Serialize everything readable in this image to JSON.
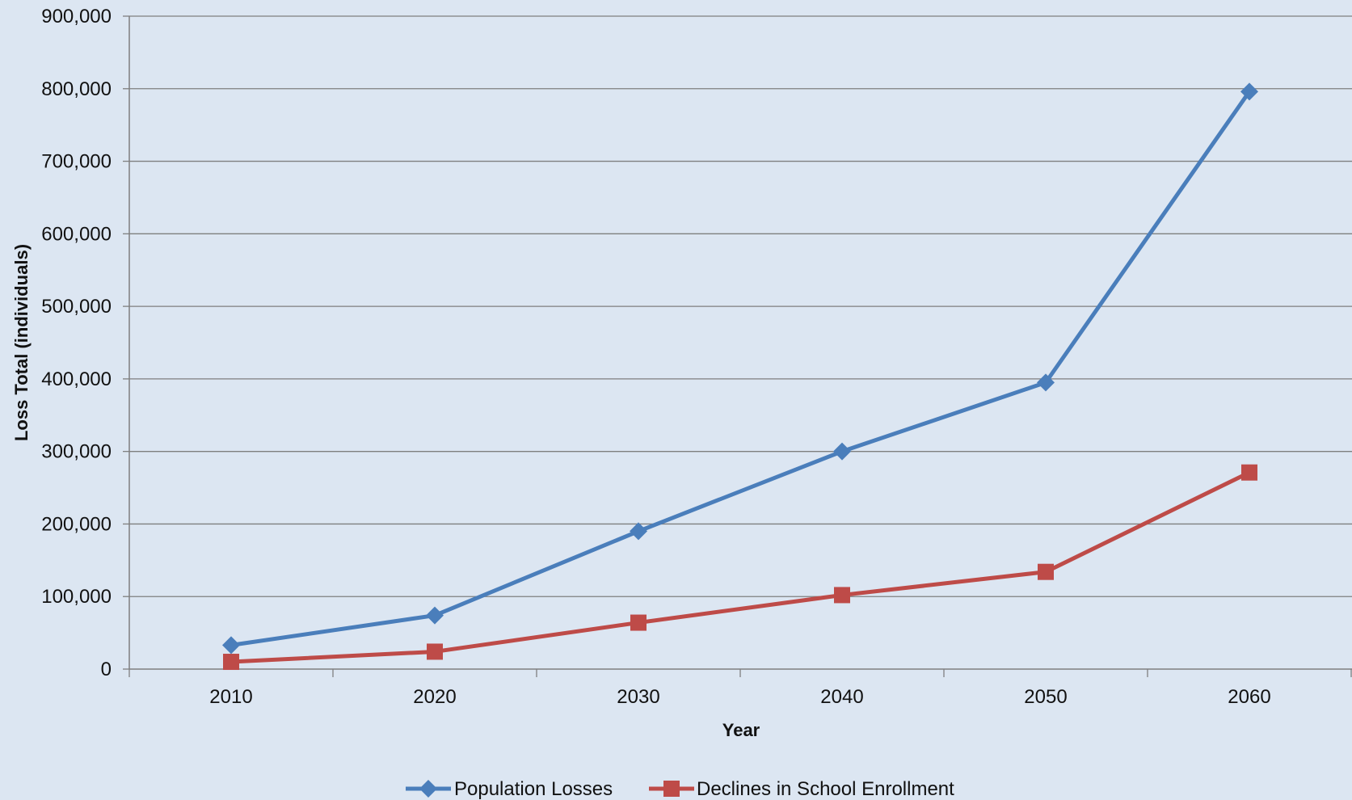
{
  "chart_data": {
    "type": "line",
    "title": "",
    "xlabel": "Year",
    "ylabel": "Loss Total (individuals)",
    "categories": [
      "2010",
      "2020",
      "2030",
      "2040",
      "2050",
      "2060"
    ],
    "ylim": [
      0,
      900000
    ],
    "yticks": [
      0,
      100000,
      200000,
      300000,
      400000,
      500000,
      600000,
      700000,
      800000,
      900000
    ],
    "ytick_labels": [
      "0",
      "100,000",
      "200,000",
      "300,000",
      "400,000",
      "500,000",
      "600,000",
      "700,000",
      "800,000",
      "900,000"
    ],
    "grid": true,
    "legend_position": "bottom",
    "series": [
      {
        "name": "Population Losses",
        "color": "#4a7ebb",
        "marker": "diamond",
        "values": [
          33000,
          74000,
          190000,
          300000,
          395000,
          796000
        ]
      },
      {
        "name": "Declines in School Enrollment",
        "color": "#be4b48",
        "marker": "square",
        "values": [
          10000,
          24000,
          64000,
          102000,
          134000,
          271000
        ]
      }
    ]
  },
  "colors": {
    "background": "#dce6f2",
    "gridline": "#7f7f7f",
    "axis": "#7f7f7f"
  }
}
